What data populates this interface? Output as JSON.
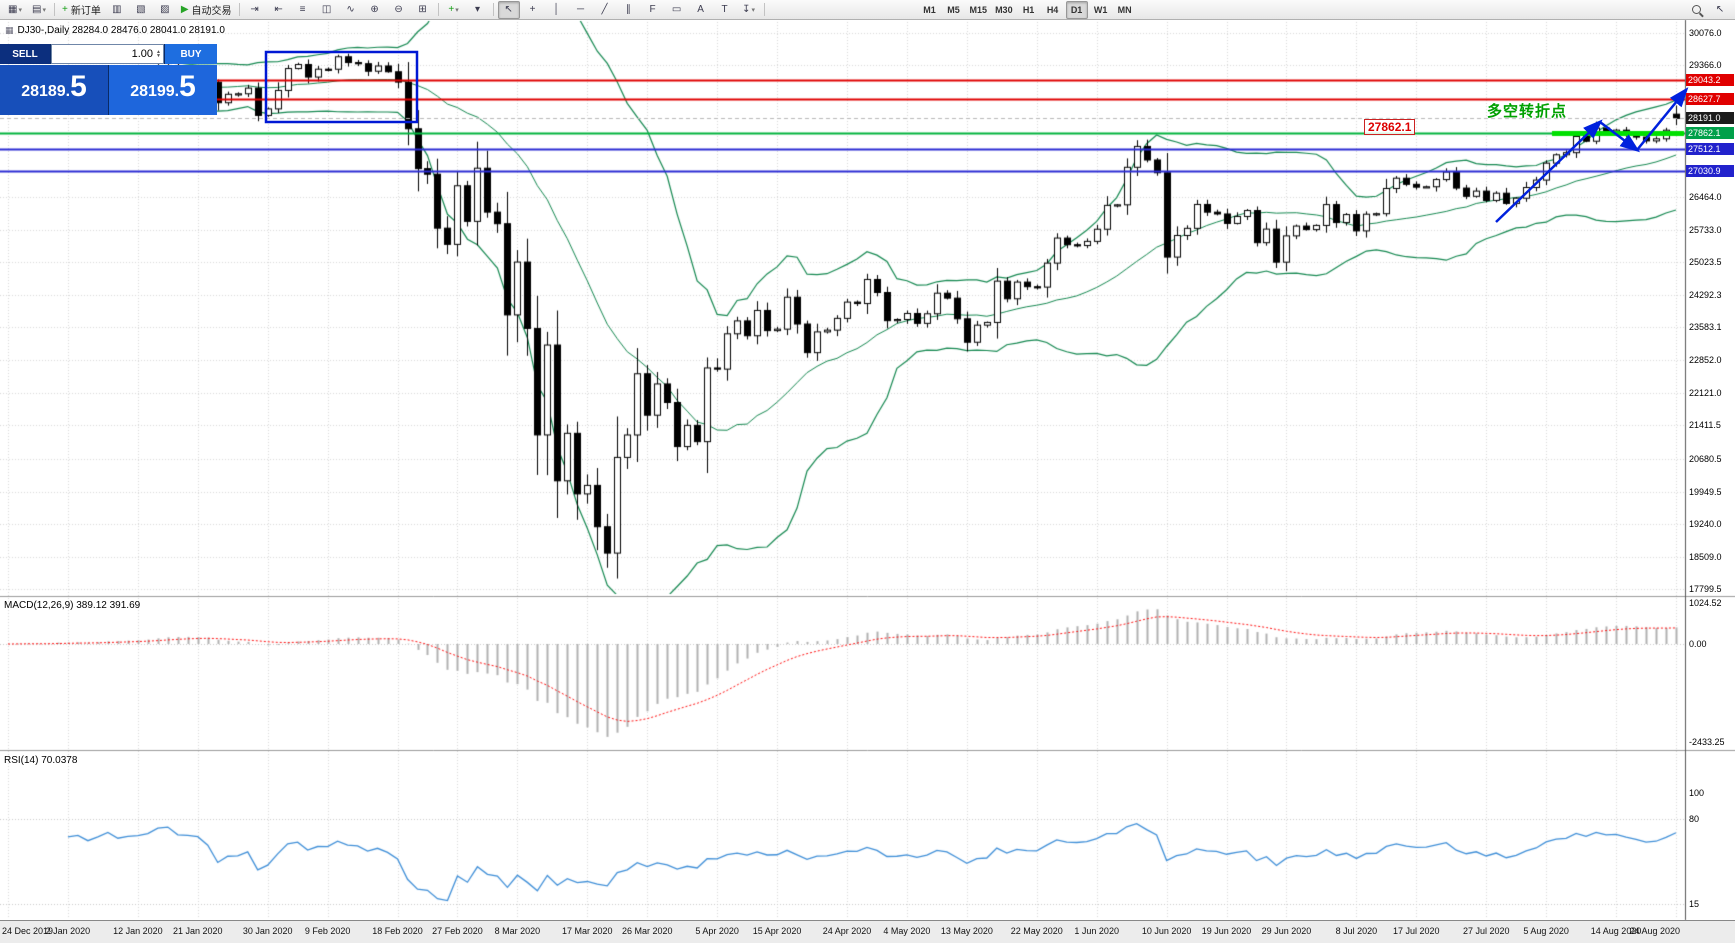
{
  "toolbar": {
    "groups": [
      {
        "name": "file-group",
        "items": [
          {
            "name": "new-chart-icon",
            "glyph": "▦",
            "caret": true
          },
          {
            "name": "profiles-icon",
            "glyph": "▤",
            "caret": true
          }
        ]
      },
      {
        "name": "trade-group",
        "items": [
          {
            "name": "new-order-button",
            "glyph": "+",
            "glyph_color": "#18a018",
            "label": "新订单"
          },
          {
            "name": "market-watch-icon",
            "glyph": "▥"
          },
          {
            "name": "data-window-icon",
            "glyph": "▧"
          },
          {
            "name": "terminal-icon",
            "glyph": "▨"
          },
          {
            "name": "autotrading-button",
            "glyph": "▶",
            "glyph_color": "#27a427",
            "label": "自动交易"
          }
        ]
      },
      {
        "name": "chart-display-group",
        "items": [
          {
            "name": "chart-shift-icon",
            "glyph": "⇥"
          },
          {
            "name": "auto-scroll-icon",
            "glyph": "⇤"
          },
          {
            "name": "bars-chart-icon",
            "glyph": "≡"
          },
          {
            "name": "candlestick-chart-icon",
            "glyph": "◫"
          },
          {
            "name": "line-chart-icon",
            "glyph": "∿"
          },
          {
            "name": "zoom-in-icon",
            "glyph": "⊕"
          },
          {
            "name": "zoom-out-icon",
            "glyph": "⊖"
          },
          {
            "name": "tile-windows-icon",
            "glyph": "⊞"
          }
        ]
      },
      {
        "name": "indicator-group",
        "items": [
          {
            "name": "indicators-icon",
            "glyph": "+",
            "glyph_color": "#18a018",
            "caret": true
          },
          {
            "name": "periods-menu-icon",
            "glyph": "▾"
          }
        ]
      },
      {
        "name": "objects-group",
        "items": [
          {
            "name": "cursor-icon",
            "glyph": "↖",
            "active": true
          },
          {
            "name": "crosshair-icon",
            "glyph": "+"
          },
          {
            "name": "vertical-line-icon",
            "glyph": "│"
          },
          {
            "name": "horizontal-line-icon",
            "glyph": "─"
          },
          {
            "name": "trendline-icon",
            "glyph": "╱"
          },
          {
            "name": "channel-icon",
            "glyph": "∥"
          },
          {
            "name": "fibonacci-icon",
            "glyph": "F"
          },
          {
            "name": "shapes-icon",
            "glyph": "▭"
          },
          {
            "name": "text-icon",
            "glyph": "A"
          },
          {
            "name": "text-label-icon",
            "glyph": "T"
          },
          {
            "name": "arrows-icon",
            "glyph": "↧",
            "caret": true
          }
        ]
      },
      {
        "name": "timeframe-group",
        "gap": 150,
        "items": [
          {
            "name": "timeframe-m1",
            "label": "M1"
          },
          {
            "name": "timeframe-m5",
            "label": "M5"
          },
          {
            "name": "timeframe-m15",
            "label": "M15"
          },
          {
            "name": "timeframe-m30",
            "label": "M30"
          },
          {
            "name": "timeframe-h1",
            "label": "H1"
          },
          {
            "name": "timeframe-h4",
            "label": "H4"
          },
          {
            "name": "timeframe-d1",
            "label": "D1",
            "active": true
          },
          {
            "name": "timeframe-w1",
            "label": "W1"
          },
          {
            "name": "timeframe-mn",
            "label": "MN"
          }
        ]
      },
      {
        "name": "right-group",
        "right": true,
        "items": [
          {
            "name": "search-icon",
            "mag": true
          },
          {
            "name": "pointer-icon",
            "glyph": "↖"
          }
        ]
      }
    ]
  },
  "chart": {
    "header": "DJ30-,Daily  28284.0 28476.0 28041.0 28191.0",
    "trade_panel": {
      "sell_label": "SELL",
      "buy_label": "BUY",
      "volume": "1.00",
      "sell_price": "28189.",
      "sell_price_big": "5",
      "buy_price": "28199.",
      "buy_price_big": "5"
    },
    "annotations": {
      "turning_point_text": "多空转折点",
      "price_callout": "27862.1"
    },
    "levels": [
      {
        "price": 29043.2,
        "label": "29043.2",
        "line_color": "#e00000",
        "tag_bg": "#e00000",
        "style": "solid",
        "width": 2
      },
      {
        "price": 28627.7,
        "label": "28627.7",
        "line_color": "#e00000",
        "tag_bg": "#e00000",
        "style": "solid",
        "width": 2
      },
      {
        "price": 28191.0,
        "label": "28191.0",
        "line_color": "#b8b8b8",
        "tag_bg": "#1c1c1c",
        "style": "dashed",
        "width": 1
      },
      {
        "price": 27862.1,
        "label": "27862.1",
        "line_color": "#00b43c",
        "tag_bg": "#00a04a",
        "style": "solid",
        "width": 2,
        "highlight_segment": true,
        "highlight_color": "#00e000"
      },
      {
        "price": 27512.1,
        "label": "27512.1",
        "line_color": "#2b2bd4",
        "tag_bg": "#2222cc",
        "style": "solid",
        "width": 2
      },
      {
        "price": 27030.9,
        "label": "27030.9",
        "line_color": "#2b2bd4",
        "tag_bg": "#2222cc",
        "style": "solid",
        "width": 2
      }
    ],
    "y_axis": [
      {
        "label": "30076.0",
        "price": 30076.0
      },
      {
        "label": "29366.0",
        "price": 29366.0
      },
      {
        "label": "26464.0",
        "price": 26464.0
      },
      {
        "label": "25733.0",
        "price": 25733.0
      },
      {
        "label": "25023.5",
        "price": 25023.5
      },
      {
        "label": "24292.3",
        "price": 24292.3
      },
      {
        "label": "23583.1",
        "price": 23583.1
      },
      {
        "label": "22852.0",
        "price": 22852.0
      },
      {
        "label": "22121.0",
        "price": 22121.0
      },
      {
        "label": "21411.5",
        "price": 21411.5
      },
      {
        "label": "20680.5",
        "price": 20680.5
      },
      {
        "label": "19949.5",
        "price": 19949.5
      },
      {
        "label": "19240.0",
        "price": 19240.0
      },
      {
        "label": "18509.0",
        "price": 18509.0
      },
      {
        "label": "17799.5",
        "price": 17799.5
      }
    ]
  },
  "macd": {
    "label": "MACD(12,26,9) 389.12 391.69",
    "scale": [
      {
        "label": "1024.52",
        "v": 1024.52
      },
      {
        "label": "0.00",
        "v": 0
      },
      {
        "label": "-2433.25",
        "v": -2433.25
      }
    ]
  },
  "rsi": {
    "label": "RSI(14) 70.0378",
    "scale": [
      {
        "label": "100",
        "v": 100
      },
      {
        "label": "80",
        "v": 80
      },
      {
        "label": "15",
        "v": 15
      }
    ],
    "levels": [
      80,
      15
    ]
  },
  "x_axis": {
    "labels": [
      "24 Dec 2019",
      "2 Jan 2020",
      "12 Jan 2020",
      "21 Jan 2020",
      "30 Jan 2020",
      "9 Feb 2020",
      "18 Feb 2020",
      "27 Feb 2020",
      "8 Mar 2020",
      "17 Mar 2020",
      "26 Mar 2020",
      "5 Apr 2020",
      "15 Apr 2020",
      "24 Apr 2020",
      "4 May 2020",
      "13 May 2020",
      "22 May 2020",
      "1 Jun 2020",
      "10 Jun 2020",
      "19 Jun 2020",
      "29 Jun 2020",
      "8 Jul 2020",
      "17 Jul 2020",
      "27 Jul 2020",
      "5 Aug 2020",
      "14 Aug 2020",
      "24 Aug 2020"
    ]
  },
  "chart_data": {
    "type": "candlestick",
    "symbol": "DJ30-",
    "timeframe": "Daily",
    "price_axis_range": {
      "top": 30076.0,
      "bottom": 17799.5
    },
    "closes": [
      28515,
      28621,
      28645,
      28462,
      28538,
      28869,
      28635,
      28703,
      28584,
      28745,
      28957,
      28824,
      28907,
      28939,
      29030,
      29297,
      29348,
      29196,
      29186,
      29160,
      28990,
      28536,
      28723,
      28734,
      28859,
      28256,
      28400,
      28808,
      29291,
      29380,
      29103,
      29277,
      29276,
      29551,
      29423,
      29398,
      29232,
      29348,
      29220,
      28992,
      27961,
      27081,
      26958,
      25767,
      25409,
      26703,
      25917,
      27091,
      26121,
      25865,
      23851,
      25018,
      23553,
      21201,
      23186,
      20188,
      21237,
      19899,
      20087,
      19174,
      18592,
      20705,
      21200,
      22552,
      21637,
      22327,
      21917,
      20944,
      21413,
      21053,
      22680,
      22654,
      23434,
      23719,
      23391,
      23950,
      23504,
      23537,
      24242,
      23650,
      23018,
      23476,
      23515,
      23775,
      24134,
      24102,
      24634,
      24346,
      23724,
      23750,
      23883,
      23665,
      23876,
      24331,
      24222,
      23765,
      23248,
      23625,
      23685,
      24597,
      24207,
      24576,
      24474,
      24465,
      24995,
      25548,
      25401,
      25383,
      25475,
      25743,
      26270,
      26282,
      27111,
      27572,
      27272,
      26990,
      25128,
      25605,
      25763,
      26290,
      26120,
      26080,
      25871,
      26025,
      26156,
      25446,
      25746,
      25016,
      25596,
      25813,
      25735,
      25827,
      26287,
      25890,
      26067,
      25706,
      26075,
      26086,
      26643,
      26870,
      26735,
      26672,
      26681,
      26840,
      27006,
      26652,
      26470,
      26585,
      26379,
      26539,
      26313,
      26428,
      26664,
      26828,
      27202,
      27387,
      27433,
      27791,
      27687,
      27977,
      27897,
      27931,
      27845,
      27778,
      27693,
      27740,
      27930,
      28191
    ],
    "last_candle": {
      "open": 28284.0,
      "high": 28476.0,
      "low": 28041.0,
      "close": 28191.0
    },
    "bollinger": {
      "period": 20,
      "deviation": 2
    },
    "macd": {
      "fast": 12,
      "slow": 26,
      "signal_period": 9,
      "main": 389.12,
      "signal": 391.69,
      "scale_max": 1024.52,
      "scale_min": -2433.25
    },
    "rsi": {
      "period": 14,
      "value": 70.0378,
      "levels": [
        80,
        15
      ]
    }
  }
}
